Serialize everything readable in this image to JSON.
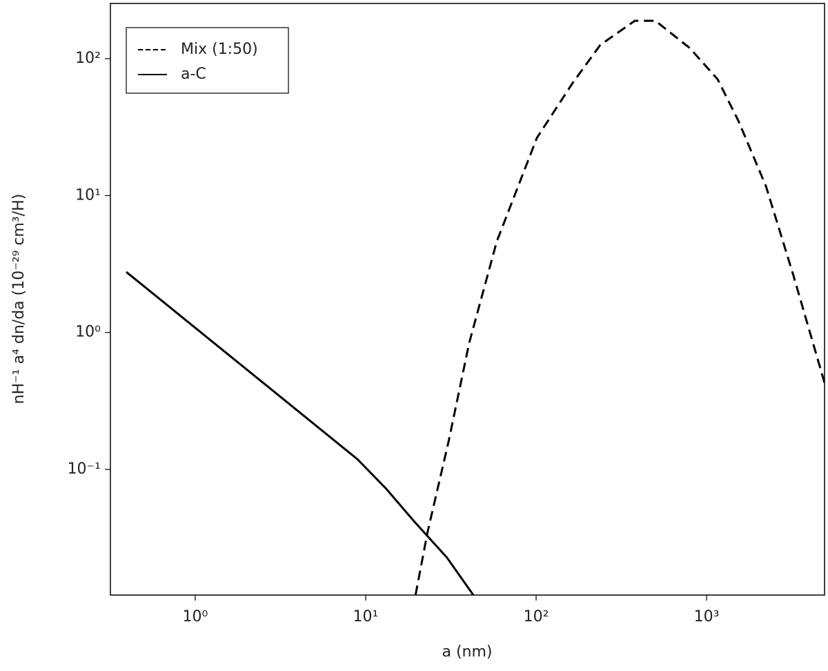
{
  "chart_data": {
    "type": "line",
    "x_label": "a (nm)",
    "y_label": "nH⁻¹ a⁴ dn/da (10⁻²⁹ cm³/H)",
    "xscale": "log",
    "yscale": "log",
    "xlim": [
      0.318,
      4920
    ],
    "ylim": [
      0.0121,
      253
    ],
    "xticks": [
      {
        "value": 1,
        "label": "10⁰"
      },
      {
        "value": 10,
        "label": "10¹"
      },
      {
        "value": 100,
        "label": "10²"
      },
      {
        "value": 1000,
        "label": "10³"
      }
    ],
    "yticks": [
      {
        "value": 0.1,
        "label": "10⁻¹"
      },
      {
        "value": 1,
        "label": "10⁰"
      },
      {
        "value": 10,
        "label": "10¹"
      },
      {
        "value": 100,
        "label": "10²"
      }
    ],
    "legend": "upper left",
    "series": [
      {
        "name": "Mix (1:50)",
        "color": "#000000",
        "dash": "dashed",
        "x": [
          19.6,
          23.1,
          30.6,
          40.5,
          58.8,
          101,
          164,
          238,
          379,
          501,
          800,
          1161,
          1536,
          2230,
          3238,
          4920
        ],
        "values": [
          0.0121,
          0.0352,
          0.159,
          0.84,
          4.63,
          26.4,
          66.7,
          126,
          189,
          189,
          119,
          70.6,
          35.2,
          11.7,
          2.59,
          0.429
        ]
      },
      {
        "name": "a-C",
        "color": "#000000",
        "dash": "solid",
        "x": [
          0.394,
          8.94,
          13.2,
          19.2,
          30,
          42.8
        ],
        "values": [
          2.77,
          0.119,
          0.0722,
          0.0419,
          0.0227,
          0.0121
        ]
      }
    ]
  }
}
